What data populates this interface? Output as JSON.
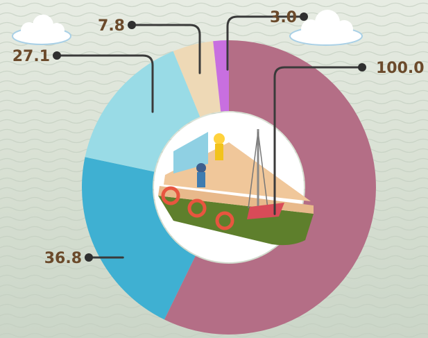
{
  "chart_data": {
    "type": "pie",
    "variant": "donut",
    "title": "",
    "values": [
      100.0,
      36.8,
      27.1,
      7.8,
      3.0
    ],
    "labels": [
      "100.0",
      "36.8",
      "27.1",
      "7.8",
      "3.0"
    ],
    "colors": [
      "#b46e86",
      "#3fb0d2",
      "#99dbe6",
      "#eed9b6",
      "#c86fe0"
    ],
    "center_image": "fishing-boat-illustration",
    "background_decor": [
      "cloud-icon",
      "cloud-icon",
      "water-texture"
    ],
    "legend": "none"
  }
}
